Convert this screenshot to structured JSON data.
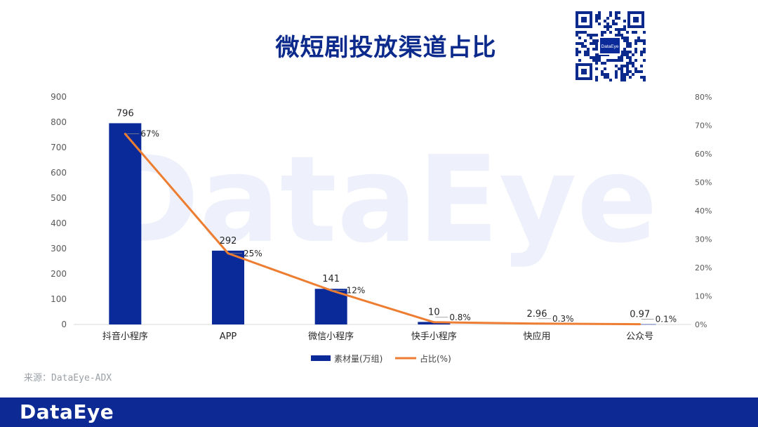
{
  "page": {
    "title": "微短剧投放渠道占比",
    "source": "来源：DataEye-ADX",
    "footer_logo": "DataEye",
    "watermark": "DataEye",
    "qr_center_text": "DataEye"
  },
  "colors": {
    "bar": "#0b2a9a",
    "line": "#ed7d31",
    "title": "#0b2a8c",
    "footer": "#0d2a94"
  },
  "chart_data": {
    "type": "bar",
    "categories": [
      "抖音小程序",
      "APP",
      "微信小程序",
      "快手小程序",
      "快应用",
      "公众号"
    ],
    "series": [
      {
        "name": "素材量(万组)",
        "type": "bar",
        "axis": "left",
        "values": [
          796,
          292,
          141,
          10,
          2.96,
          0.97
        ],
        "labels": [
          "796",
          "292",
          "141",
          "10",
          "2.96",
          "0.97"
        ]
      },
      {
        "name": "占比(%)",
        "type": "line",
        "axis": "right",
        "values": [
          67,
          25,
          12,
          0.8,
          0.3,
          0.1
        ],
        "labels": [
          "67%",
          "25%",
          "12%",
          "0.8%",
          "0.3%",
          "0.1%"
        ]
      }
    ],
    "y_left": {
      "min": 0,
      "max": 900,
      "ticks": [
        "0",
        "100",
        "200",
        "300",
        "400",
        "500",
        "600",
        "700",
        "800",
        "900"
      ]
    },
    "y_right": {
      "min": 0,
      "max": 80,
      "ticks": [
        "0%",
        "10%",
        "20%",
        "30%",
        "40%",
        "50%",
        "60%",
        "70%",
        "80%"
      ]
    },
    "legend": {
      "position": "bottom",
      "items": [
        "素材量(万组)",
        "占比(%)"
      ]
    },
    "grid": false
  }
}
